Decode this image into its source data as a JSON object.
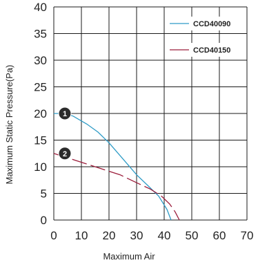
{
  "chart_data": {
    "type": "line",
    "title": "",
    "xlabel": "Maximum Air",
    "ylabel": "Maximum Static Pressure(Pa)",
    "xlim": [
      0,
      70
    ],
    "ylim": [
      0,
      40
    ],
    "x_ticks": [
      "0",
      "10",
      "20",
      "30",
      "40",
      "50",
      "60",
      "70"
    ],
    "y_ticks": [
      "0",
      "5",
      "10",
      "15",
      "20",
      "25",
      "30",
      "35",
      "40"
    ],
    "grid": true,
    "legend_position": "top-right",
    "series": [
      {
        "name": "CCD40090",
        "color": "#2e9bc6",
        "style": "solid",
        "x": [
          0,
          4,
          7,
          12,
          16,
          20,
          25,
          30,
          34,
          38,
          41,
          42.5
        ],
        "y": [
          20,
          20,
          19.5,
          18,
          16.5,
          14.5,
          11.5,
          8.5,
          6.5,
          4.5,
          2,
          0
        ]
      },
      {
        "name": "CCD40150",
        "color": "#9b1c3a",
        "style": "dashed",
        "x": [
          0,
          6,
          12,
          18,
          24,
          30,
          35,
          39,
          42,
          44,
          45.5
        ],
        "y": [
          12.5,
          11.5,
          10.5,
          9.5,
          8.5,
          7,
          5.8,
          4.5,
          3,
          1.5,
          0
        ]
      }
    ],
    "markers": [
      {
        "label": "1",
        "x": 4,
        "y": 20,
        "color": "#2b2b2b"
      },
      {
        "label": "2",
        "x": 4,
        "y": 12.5,
        "color": "#2b2b2b"
      }
    ]
  }
}
